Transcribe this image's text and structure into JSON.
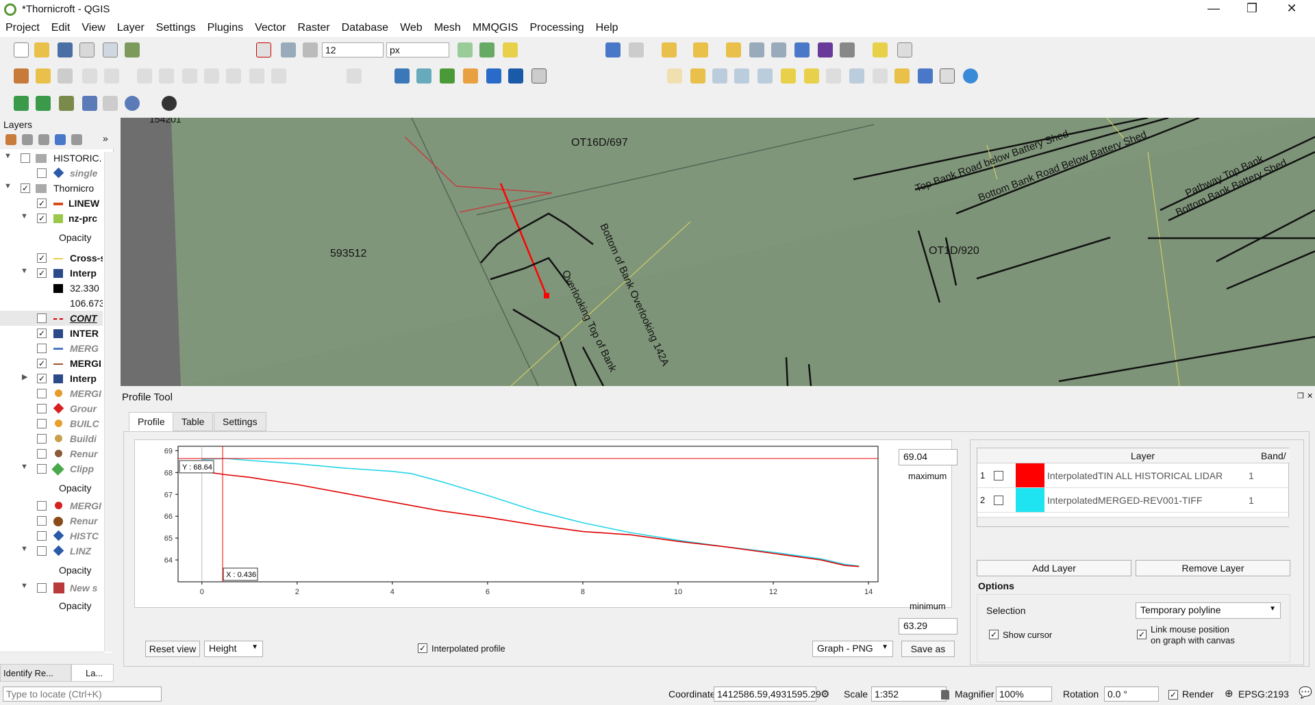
{
  "window": {
    "title": "*Thornicroft - QGIS",
    "minimize": "—",
    "restore": "❐",
    "close": "✕"
  },
  "menu": [
    "Project",
    "Edit",
    "View",
    "Layer",
    "Settings",
    "Plugins",
    "Vector",
    "Raster",
    "Database",
    "Web",
    "Mesh",
    "MMQGIS",
    "Processing",
    "Help"
  ],
  "toolbar": {
    "snap_tolerance": "12",
    "snap_units": "px"
  },
  "layers_panel": {
    "title": "Layers",
    "rows": [
      {
        "name": "HISTORIC.",
        "checked": false,
        "kind": "group"
      },
      {
        "name": "single",
        "checked": false,
        "kind": "point"
      },
      {
        "name": "Thornicro",
        "checked": true,
        "kind": "group"
      },
      {
        "name": "LINEW",
        "checked": true,
        "kind": "line"
      },
      {
        "name": "nz-prc",
        "checked": true,
        "kind": "raster"
      },
      {
        "name": "Opacity",
        "checked": null,
        "kind": "label"
      },
      {
        "name": "Cross-s",
        "checked": true,
        "kind": "line"
      },
      {
        "name": "Interp",
        "checked": true,
        "kind": "raster"
      },
      {
        "name": "32.330",
        "checked": null,
        "kind": "legend"
      },
      {
        "name": "106.673",
        "checked": null,
        "kind": "legend"
      },
      {
        "name": "CONT",
        "checked": false,
        "kind": "line"
      },
      {
        "name": "INTER",
        "checked": true,
        "kind": "raster"
      },
      {
        "name": "MERG",
        "checked": false,
        "kind": "line"
      },
      {
        "name": "MERGI",
        "checked": true,
        "kind": "line"
      },
      {
        "name": "Interp",
        "checked": true,
        "kind": "raster"
      },
      {
        "name": "MERGI",
        "checked": false,
        "kind": "point"
      },
      {
        "name": "Grour",
        "checked": false,
        "kind": "point"
      },
      {
        "name": "BUILC",
        "checked": false,
        "kind": "point"
      },
      {
        "name": "Buildi",
        "checked": false,
        "kind": "point"
      },
      {
        "name": "Renur",
        "checked": false,
        "kind": "point"
      },
      {
        "name": "Clipp",
        "checked": false,
        "kind": "polygon"
      },
      {
        "name": "Opacity",
        "checked": null,
        "kind": "label"
      },
      {
        "name": "MERGI",
        "checked": false,
        "kind": "point"
      },
      {
        "name": "Renur",
        "checked": false,
        "kind": "point"
      },
      {
        "name": "HISTC",
        "checked": false,
        "kind": "point"
      },
      {
        "name": "LINZ",
        "checked": false,
        "kind": "group"
      },
      {
        "name": "Opacity",
        "checked": null,
        "kind": "label"
      },
      {
        "name": "New s",
        "checked": false,
        "kind": "polygon"
      },
      {
        "name": "Opacity",
        "checked": null,
        "kind": "label"
      }
    ],
    "bottom_tabs": [
      "Identify Re...",
      "La..."
    ]
  },
  "map": {
    "labels": [
      "OT16D/697",
      "593512",
      "OT1D/920",
      "Top Bank Road below Battery Shed",
      "Bottom Bank Road Below Battery Shed",
      "Pathway Top Bank",
      "Bottom Bank Battery Shed",
      "Bottom of Bank Overlooking 142A",
      "Overlooking Top of Bank",
      "154201"
    ]
  },
  "profile_tool": {
    "title": "Profile Tool",
    "tabs": [
      "Profile",
      "Table",
      "Settings"
    ],
    "max_value": "69.04",
    "max_label": "maximum",
    "min_value": "63.29",
    "min_label": "minimum",
    "cursor_y": "Y : 68.64",
    "cursor_x": "X : 0.436",
    "reset_view": "Reset view",
    "plot_mode": "Height",
    "interpolated_profile": "Interpolated profile",
    "export_format": "Graph - PNG",
    "save_as": "Save as",
    "layer_table": {
      "headers": [
        "Layer",
        "Band/"
      ],
      "rows": [
        {
          "idx": "1",
          "color": "#ff0000",
          "layer": "InterpolatedTIN ALL HISTORICAL LIDAR",
          "band": "1"
        },
        {
          "idx": "2",
          "color": "#1ee3f0",
          "layer": "InterpolatedMERGED-REV001-TIFF",
          "band": "1"
        }
      ]
    },
    "add_layer": "Add Layer",
    "remove_layer": "Remove Layer",
    "options_title": "Options",
    "selection_label": "Selection",
    "selection_value": "Temporary polyline",
    "show_cursor": "Show cursor",
    "link_mouse_1": "Link mouse position",
    "link_mouse_2": "on graph with canvas"
  },
  "chart_data": {
    "type": "line",
    "xlim": [
      -0.5,
      14.2
    ],
    "ylim": [
      63.0,
      69.2
    ],
    "x_ticks": [
      0,
      2,
      4,
      6,
      8,
      10,
      12,
      14
    ],
    "y_ticks": [
      64,
      65,
      66,
      67,
      68,
      69
    ],
    "series": [
      {
        "name": "InterpolatedTIN ALL HISTORICAL LIDAR",
        "color": "#e00000",
        "x": [
          0,
          0.5,
          1,
          2,
          3,
          4,
          5,
          6,
          7,
          8,
          9,
          10,
          11,
          12,
          13,
          13.5,
          13.8
        ],
        "y": [
          68.05,
          67.9,
          67.78,
          67.45,
          67.05,
          66.65,
          66.25,
          65.95,
          65.6,
          65.3,
          65.15,
          64.85,
          64.6,
          64.3,
          64.0,
          63.75,
          63.7
        ]
      },
      {
        "name": "InterpolatedMERGED-REV001-TIFF",
        "color": "#22d5e8",
        "x": [
          0,
          0.5,
          1,
          2,
          3,
          4,
          4.4,
          5,
          6,
          7,
          8,
          9,
          10,
          11,
          12,
          13,
          13.5,
          13.8
        ],
        "y": [
          68.6,
          68.64,
          68.55,
          68.4,
          68.2,
          68.05,
          67.95,
          67.6,
          66.95,
          66.25,
          65.7,
          65.25,
          64.9,
          64.6,
          64.35,
          64.05,
          63.8,
          63.72
        ]
      }
    ],
    "cursor_x": 0.436,
    "cursor_y": 68.64
  },
  "statusbar": {
    "search_placeholder": "Type to locate (Ctrl+K)",
    "coordinate_label": "Coordinate",
    "coordinate": "1412586.59,4931595.29",
    "scale_label": "Scale",
    "scale": "1:352",
    "magnifier_label": "Magnifier",
    "magnifier": "100%",
    "rotation_label": "Rotation",
    "rotation": "0.0 °",
    "render_label": "Render",
    "crs": "EPSG:2193"
  }
}
